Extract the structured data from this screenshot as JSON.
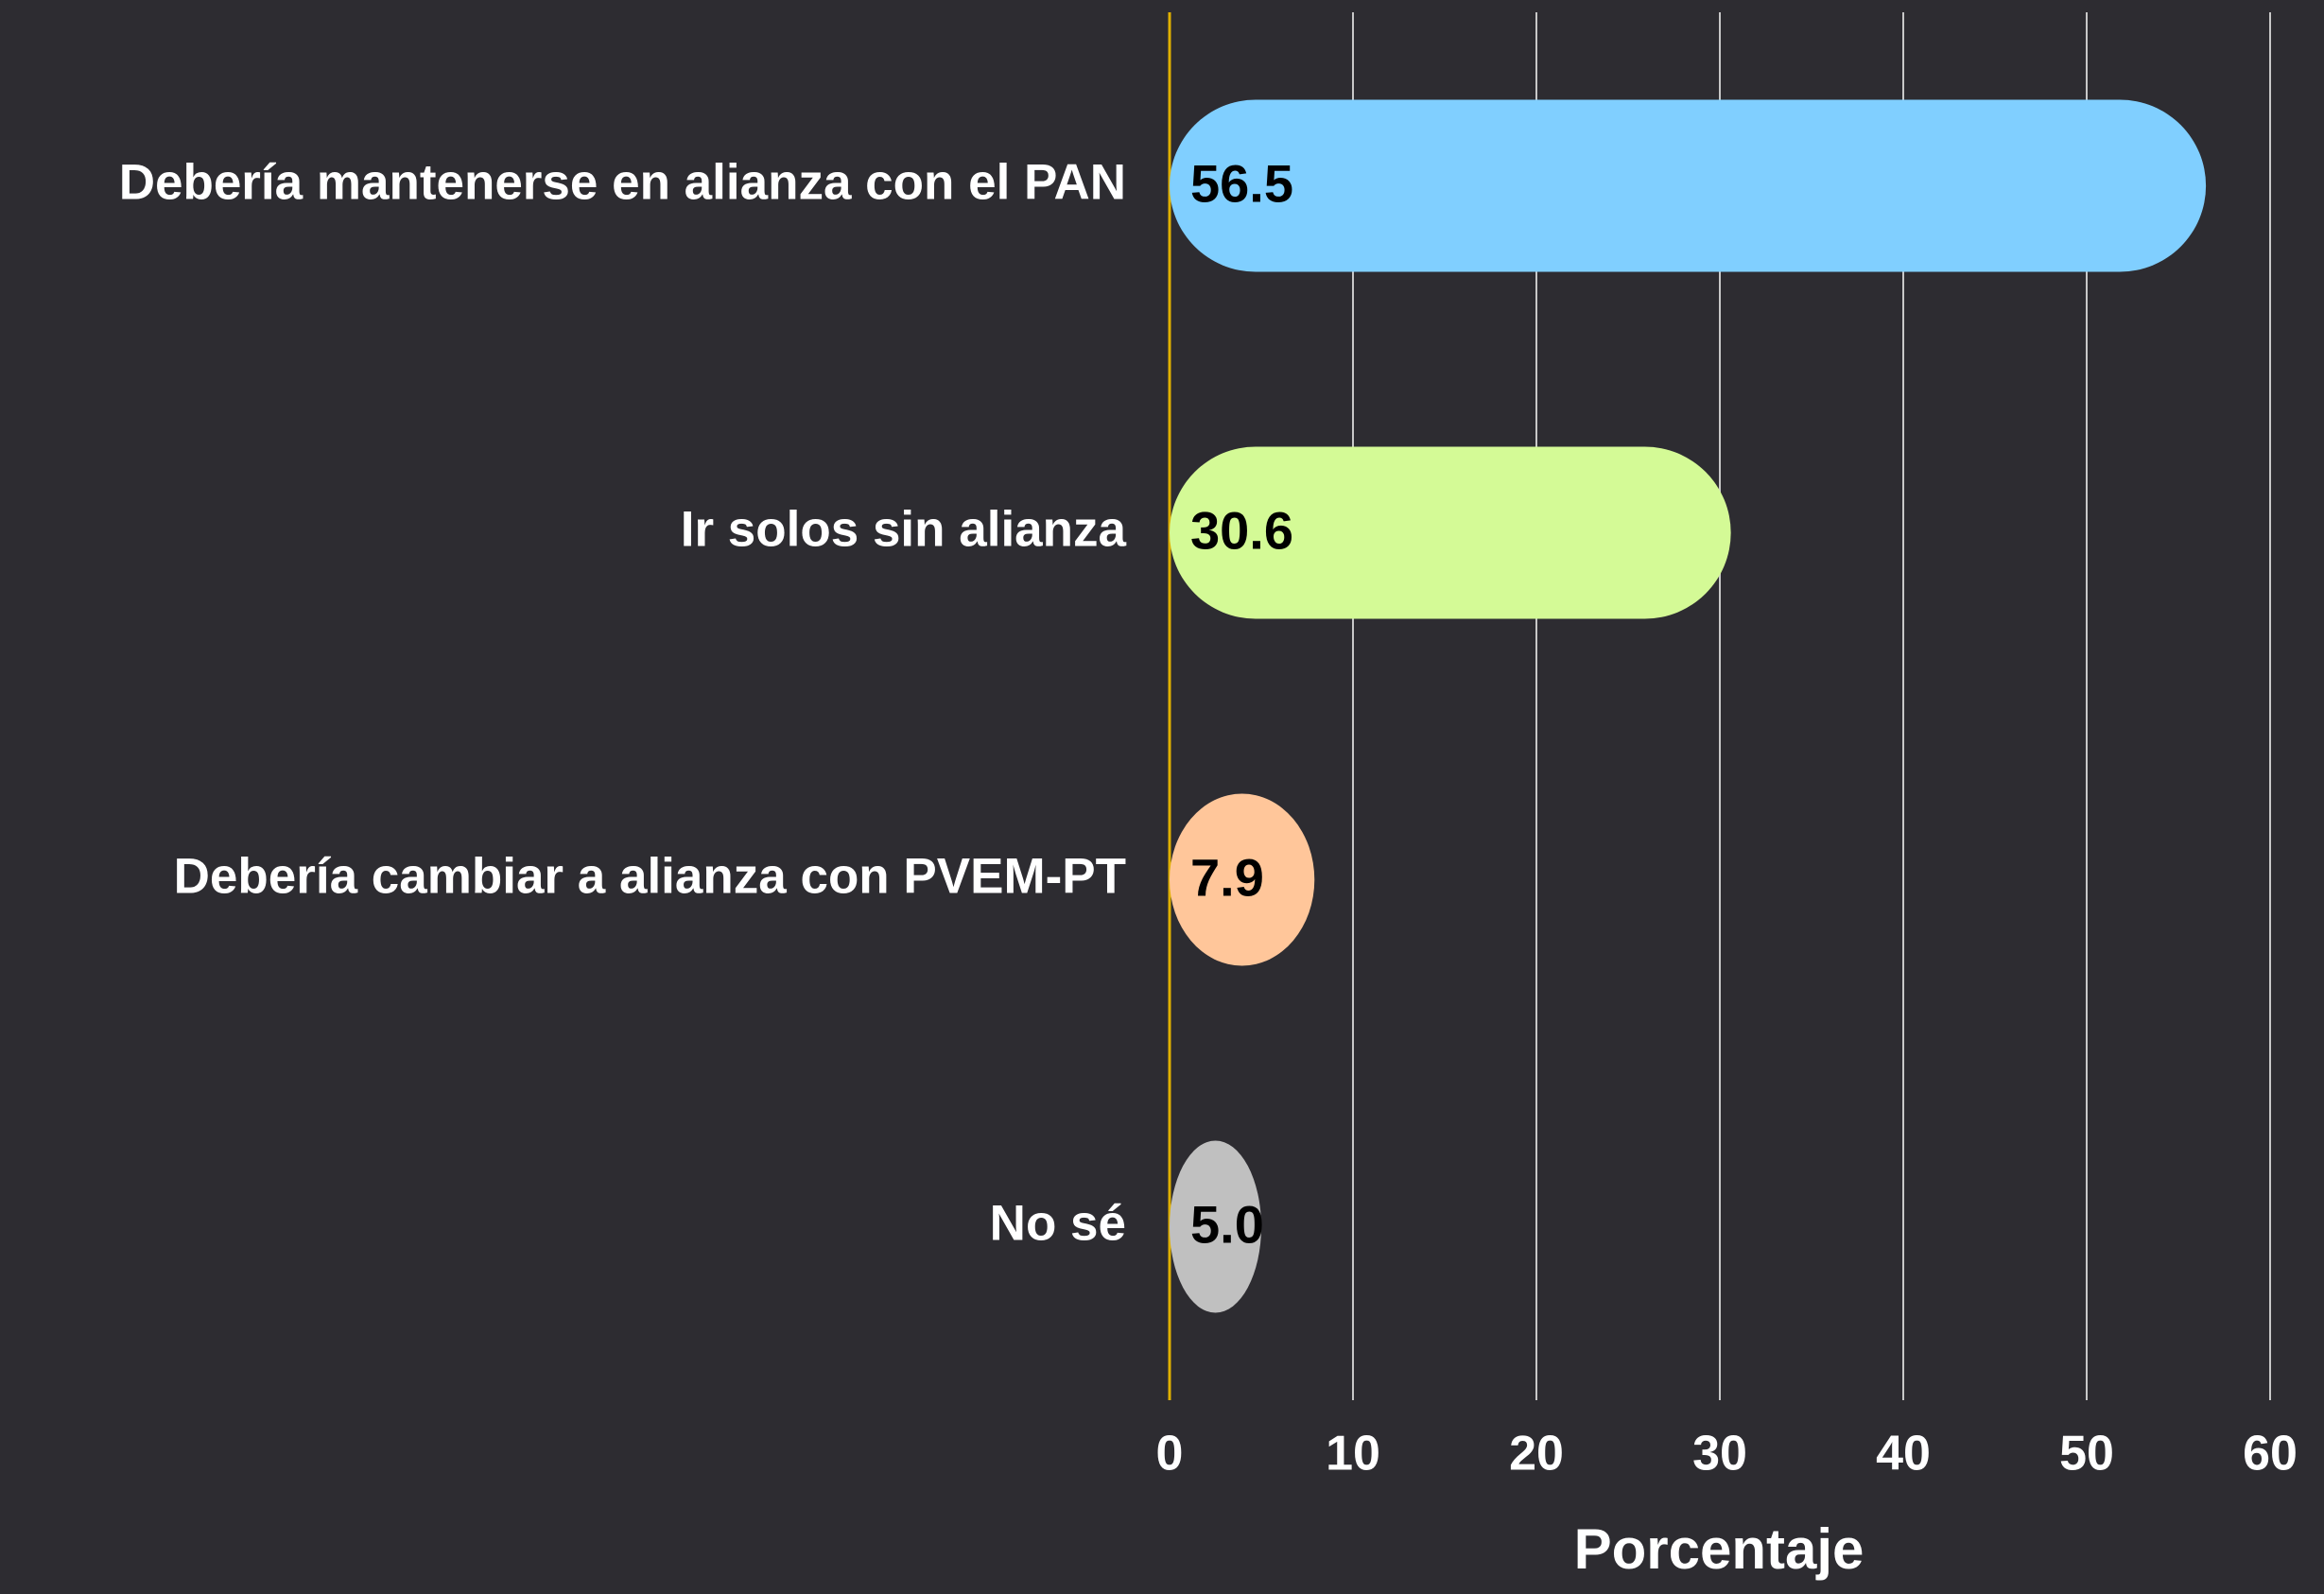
{
  "chart_data": {
    "type": "bar",
    "orientation": "horizontal",
    "categories": [
      "Debería mantenerse en alianza con el PAN",
      "Ir solos sin alianza",
      "Debería cambiar a alianza con PVEM-PT",
      "No sé"
    ],
    "values": [
      56.5,
      30.6,
      7.9,
      5.0
    ],
    "value_labels": [
      "56.5",
      "30.6",
      "7.9",
      "5.0"
    ],
    "colors": [
      "#80cfff",
      "#d4fa96",
      "#ffc69a",
      "#c0c0c0"
    ],
    "xlabel": "Porcentaje",
    "xlim": [
      0,
      60
    ],
    "xticks": [
      0,
      10,
      20,
      30,
      40,
      50,
      60
    ],
    "grid": true
  }
}
